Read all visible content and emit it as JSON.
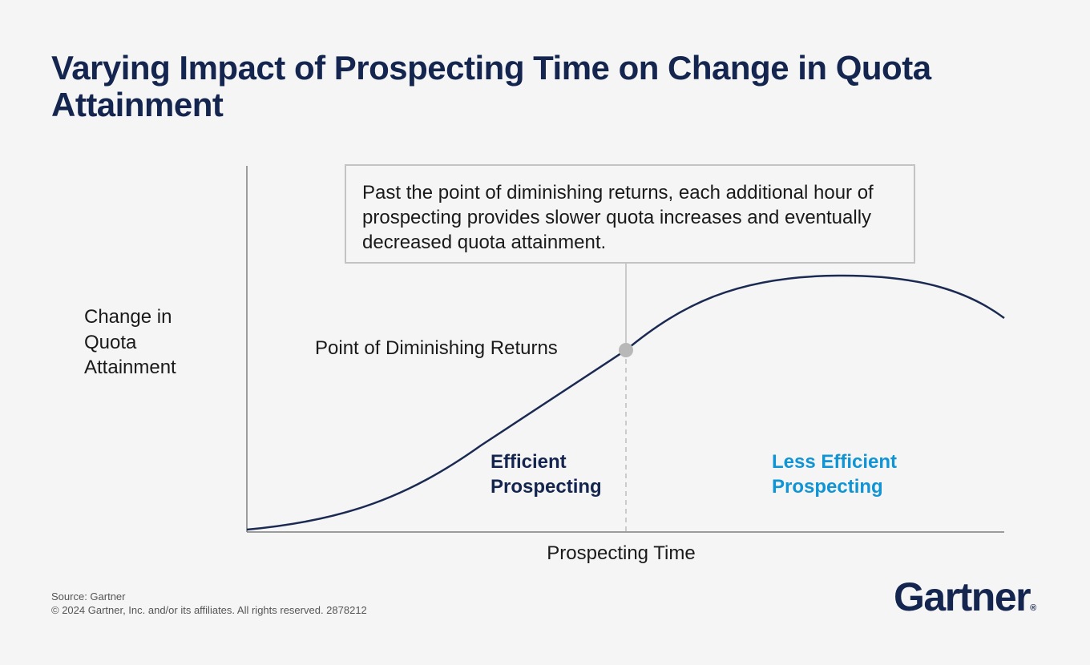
{
  "title": "Varying Impact of Prospecting Time on Change in Quota Attainment",
  "chart_data": {
    "type": "line",
    "xlabel": "Prospecting Time",
    "ylabel": "Change in Quota Attainment",
    "grid": false,
    "axis_ticks": false,
    "shape": "Rises slowly, accelerates to an inflection at the point of diminishing returns, flattens to a peak, then declines",
    "annotations": {
      "callout": "Past the point of diminishing returns, each additional hour of prospecting provides slower quota increases and eventually decreased quota attainment.",
      "point_label": "Point of Diminishing Returns",
      "regions": [
        {
          "label_line1": "Efficient",
          "label_line2": "Prospecting",
          "color": "#14254f"
        },
        {
          "label_line1": "Less Efficient",
          "label_line2": "Prospecting",
          "color": "#1094d3"
        }
      ]
    },
    "colors": {
      "curve": "#1b2a52",
      "marker": "#b8b8b8",
      "axis": "#7f7f7f",
      "divider": "#bdbdbd"
    }
  },
  "footer": {
    "source": "Source: Gartner",
    "copyright": "© 2024 Gartner, Inc. and/or its affiliates. All rights reserved. 2878212"
  },
  "logo": {
    "text": "Gartner",
    "mark": "®"
  }
}
